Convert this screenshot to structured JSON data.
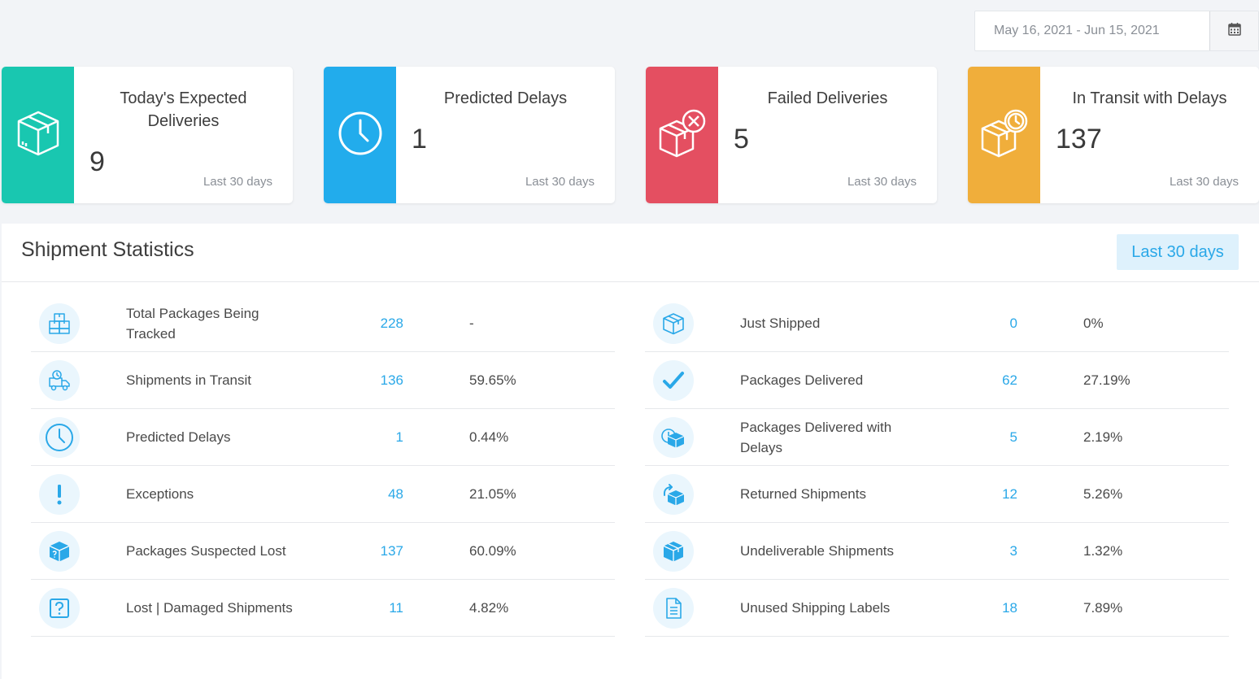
{
  "date_range": {
    "value": "May 16, 2021 - Jun 15, 2021",
    "icon": "calendar-icon"
  },
  "cards": [
    {
      "title": "Today's Expected Deliveries",
      "value": "9",
      "period": "Last 30 days",
      "color": "#19c7b0",
      "icon": "package-box-icon"
    },
    {
      "title": "Predicted Delays",
      "value": "1",
      "period": "Last 30 days",
      "color": "#22acec",
      "icon": "clock-icon"
    },
    {
      "title": "Failed Deliveries",
      "value": "5",
      "period": "Last 30 days",
      "color": "#e44f61",
      "icon": "package-failed-icon"
    },
    {
      "title": "In Transit with Delays",
      "value": "137",
      "period": "Last 30 days",
      "color": "#f0ae3b",
      "icon": "package-delayed-icon"
    }
  ],
  "stats": {
    "title": "Shipment Statistics",
    "period_button": "Last 30 days",
    "left": [
      {
        "label": "Total Packages Being Tracked",
        "count": "228",
        "pct": "-",
        "icon": "boxes-stack-icon"
      },
      {
        "label": "Shipments in Transit",
        "count": "136",
        "pct": "59.65%",
        "icon": "delivery-truck-icon"
      },
      {
        "label": "Predicted Delays",
        "count": "1",
        "pct": "0.44%",
        "icon": "clock-icon"
      },
      {
        "label": "Exceptions",
        "count": "48",
        "pct": "21.05%",
        "icon": "exclamation-icon"
      },
      {
        "label": "Packages Suspected Lost",
        "count": "137",
        "pct": "60.09%",
        "icon": "package-question-icon"
      },
      {
        "label": "Lost | Damaged Shipments",
        "count": "11",
        "pct": "4.82%",
        "icon": "question-box-icon"
      }
    ],
    "right": [
      {
        "label": "Just Shipped",
        "count": "0",
        "pct": "0%",
        "icon": "package-outline-icon"
      },
      {
        "label": "Packages Delivered",
        "count": "62",
        "pct": "27.19%",
        "icon": "checkmark-icon"
      },
      {
        "label": "Packages Delivered with Delays",
        "count": "5",
        "pct": "2.19%",
        "icon": "package-clock-icon"
      },
      {
        "label": "Returned Shipments",
        "count": "12",
        "pct": "5.26%",
        "icon": "package-return-icon"
      },
      {
        "label": "Undeliverable Shipments",
        "count": "3",
        "pct": "1.32%",
        "icon": "package-solid-icon"
      },
      {
        "label": "Unused Shipping Labels",
        "count": "18",
        "pct": "7.89%",
        "icon": "document-label-icon"
      }
    ]
  }
}
